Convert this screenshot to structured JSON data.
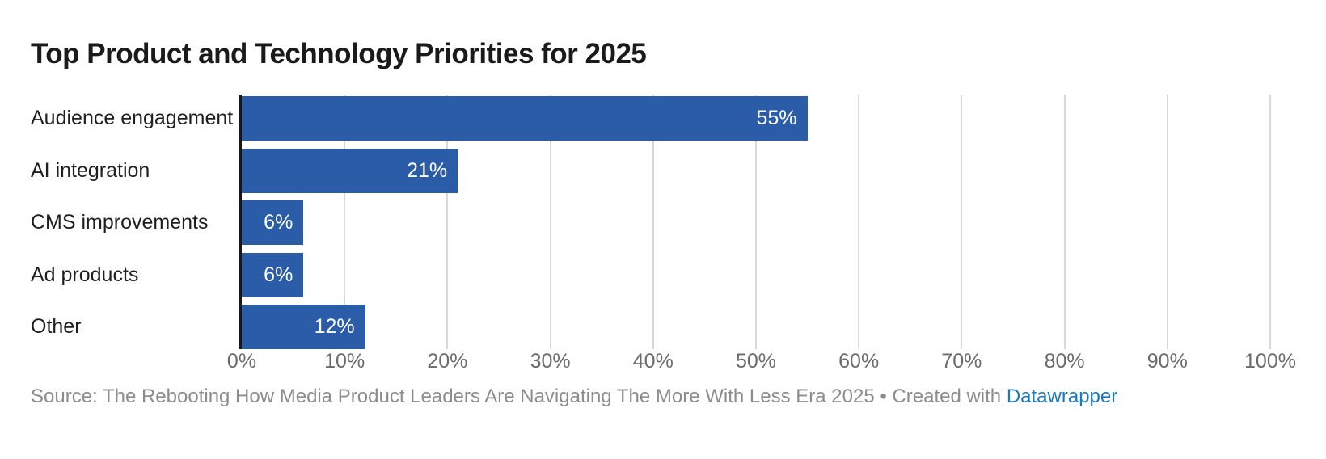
{
  "chart_data": {
    "type": "bar",
    "orientation": "horizontal",
    "title": "Top Product and Technology Priorities for 2025",
    "categories": [
      "Audience engagement",
      "AI integration",
      "CMS improvements",
      "Ad products",
      "Other"
    ],
    "values": [
      55,
      21,
      6,
      6,
      12
    ],
    "value_labels": [
      "55%",
      "21%",
      "6%",
      "6%",
      "12%"
    ],
    "xlabel": "",
    "ylabel": "",
    "xlim": [
      0,
      100
    ],
    "tick_values": [
      0,
      10,
      20,
      30,
      40,
      50,
      60,
      70,
      80,
      90,
      100
    ],
    "tick_labels": [
      "0%",
      "10%",
      "20%",
      "30%",
      "40%",
      "50%",
      "60%",
      "70%",
      "80%",
      "90%",
      "100%"
    ],
    "grid": true,
    "legend_position": "none"
  },
  "colors": {
    "background": "#ffffff",
    "bar": "#2b5ca7",
    "title_text": "#1a1a1a",
    "category_text": "#1f1f1f",
    "value_text": "#ffffff",
    "tick_text": "#6b6b6b",
    "gridline": "#d8d8d8",
    "axis_line": "#18181a",
    "source_text": "#8c8c8c",
    "link": "#1779c2"
  },
  "footer": {
    "source_text": "Source: The Rebooting How Media Product Leaders Are Navigating The More With Less Era 2025 • Created with ",
    "link_label": "Datawrapper"
  }
}
